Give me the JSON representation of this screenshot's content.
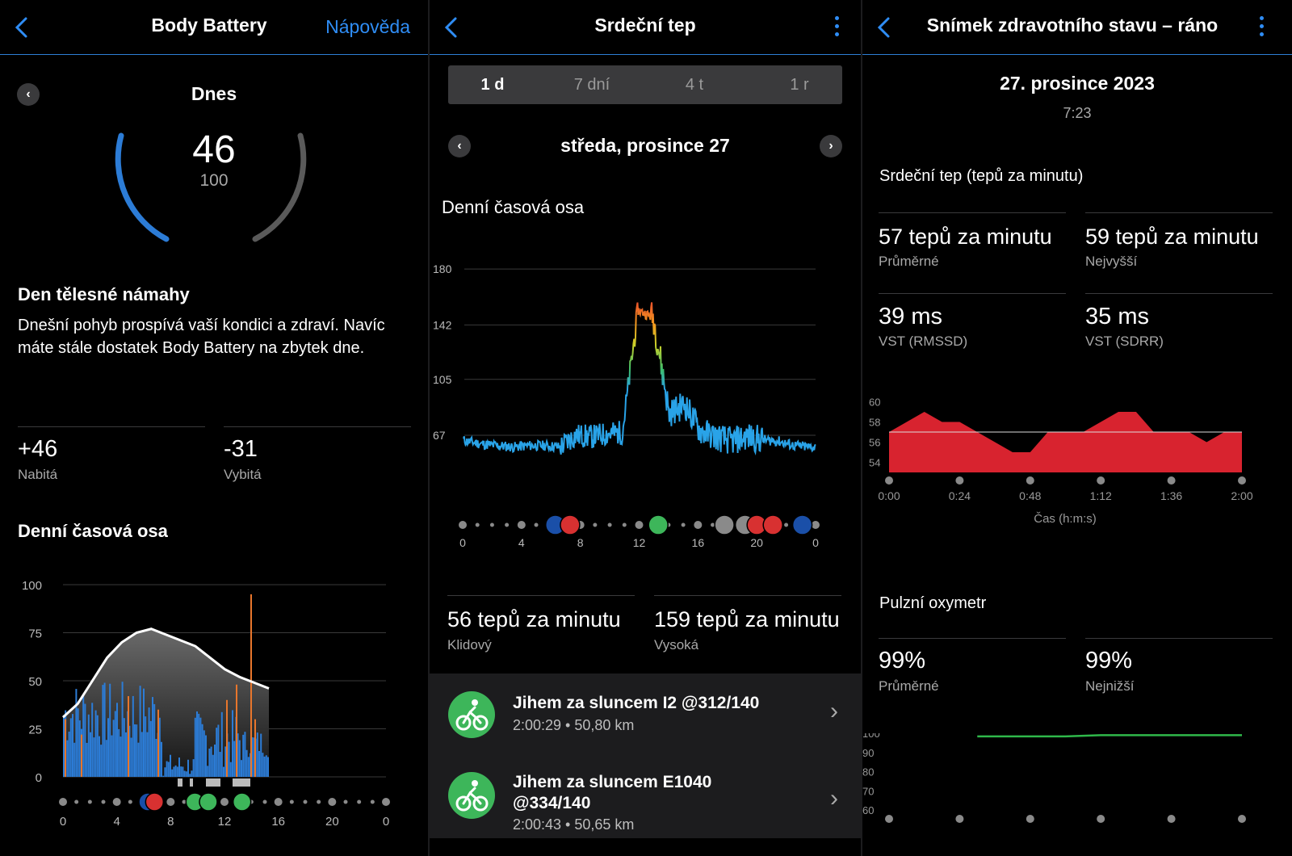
{
  "panel1": {
    "title": "Body Battery",
    "help": "Nápověda",
    "day_label": "Dnes",
    "battery_value": "46",
    "battery_max": "100",
    "battery_level": 0.46,
    "summary_title": "Den tělesné námahy",
    "summary_text": "Dnešní pohyb prospívá vaší kondici a zdraví. Navíc máte stále dostatek Body Battery na zbytek dne.",
    "charged_value": "+46",
    "charged_label": "Nabitá",
    "drained_value": "-31",
    "drained_label": "Vybitá",
    "timeline_title": "Denní časová osa",
    "chart_yticks": [
      "100",
      "75",
      "50",
      "25",
      "0"
    ],
    "chart_xticks": [
      "0",
      "4",
      "8",
      "12",
      "16",
      "20",
      "0"
    ]
  },
  "panel2": {
    "title": "Srdeční tep",
    "range_tabs": [
      "1 d",
      "7 dní",
      "4 t",
      "1 r"
    ],
    "selected_tab": "1 d",
    "date": "středa, prosince 27",
    "timeline_title": "Denní časová osa",
    "chart_yticks": [
      "180",
      "142",
      "105",
      "67"
    ],
    "chart_xticks": [
      "0",
      "4",
      "8",
      "12",
      "16",
      "20",
      "0"
    ],
    "resting_value": "56 tepů za minutu",
    "resting_label": "Klidový",
    "high_value": "159 tepů za minutu",
    "high_label": "Vysoká",
    "activities": [
      {
        "title": "Jihem za sluncem I2 @312/140",
        "sub": "2:00:29 • 50,80 km"
      },
      {
        "title": "Jihem za sluncem E1040 @334/140",
        "sub": "2:00:43 • 50,65 km"
      }
    ]
  },
  "panel3": {
    "title": "Snímek zdravotního stavu – ráno",
    "date": "27. prosince 2023",
    "time": "7:23",
    "hr_section": "Srdeční tep (tepů za minutu)",
    "avg_hr_value": "57 tepů za minutu",
    "avg_hr_label": "Průměrné",
    "max_hr_value": "59 tepů za minutu",
    "max_hr_label": "Nejvyšší",
    "rmssd_value": "39 ms",
    "rmssd_label": "VST (RMSSD)",
    "sdrr_value": "35 ms",
    "sdrr_label": "VST (SDRR)",
    "hr_chart_yticks": [
      "60",
      "58",
      "56",
      "54"
    ],
    "hr_chart_xticks": [
      "0:00",
      "0:24",
      "0:48",
      "1:12",
      "1:36",
      "2:00"
    ],
    "hr_chart_xlabel": "Čas (h:m:s)",
    "ox_section": "Pulzní oxymetr",
    "ox_avg_value": "99%",
    "ox_avg_label": "Průměrné",
    "ox_min_value": "99%",
    "ox_min_label": "Nejnižší",
    "ox_chart_yticks": [
      "100",
      "90",
      "80",
      "70",
      "60"
    ]
  },
  "colors": {
    "accent": "#2f8df5",
    "bb_blue": "#2c7cd6",
    "bb_orange": "#e8762c",
    "hr_line": "#29a3e8",
    "snapshot_red": "#d8232f",
    "ox_green": "#2fb84a",
    "activity_green": "#3db65a"
  },
  "chart_data": [
    {
      "type": "area",
      "title": "Denní časová osa",
      "ylim": [
        0,
        100
      ],
      "x": [
        0,
        1,
        2,
        3,
        4,
        5,
        6,
        7,
        8,
        9,
        10,
        11,
        12,
        13,
        14
      ],
      "series": [
        {
          "values": [
            31,
            38,
            50,
            62,
            70,
            75,
            77,
            74,
            71,
            68,
            62,
            56,
            52,
            49,
            46
          ]
        }
      ]
    },
    {
      "type": "line",
      "title": "Denní časová osa",
      "x": [
        0,
        1,
        2,
        3,
        4,
        5,
        6,
        7,
        8,
        9,
        10,
        11,
        12,
        13,
        14,
        15,
        16,
        17,
        18,
        19,
        20,
        21,
        22,
        23,
        24
      ],
      "series": [
        {
          "values": [
            66,
            63,
            61,
            60,
            59,
            60,
            60,
            59,
            67,
            66,
            68,
            69,
            152,
            147,
            82,
            88,
            70,
            66,
            63,
            66,
            64,
            63,
            60,
            59,
            59
          ]
        }
      ],
      "ylim": [
        50,
        185
      ]
    },
    {
      "type": "area",
      "title": "Srdeční tep (tepů za minutu)",
      "xlabel": "Čas (h:m:s)",
      "ylim": [
        53,
        61
      ],
      "x": [
        0,
        0.1,
        0.2,
        0.3,
        0.4,
        0.5,
        0.6,
        0.7,
        0.8,
        0.9,
        1.0,
        1.1,
        1.2,
        1.3,
        1.4,
        1.5,
        1.6,
        1.7,
        1.8,
        1.9,
        2.0
      ],
      "series": [
        {
          "values": [
            57,
            58,
            59,
            58,
            58,
            57,
            56,
            55,
            55,
            57,
            57,
            57,
            58,
            59,
            59,
            57,
            57,
            57,
            56,
            57,
            57
          ]
        }
      ]
    },
    {
      "type": "line",
      "ylim": [
        60,
        100
      ],
      "x": [
        0.5,
        1.0,
        1.2,
        2.0
      ],
      "series": [
        {
          "values": [
            99,
            99,
            99,
            99
          ]
        }
      ]
    }
  ]
}
